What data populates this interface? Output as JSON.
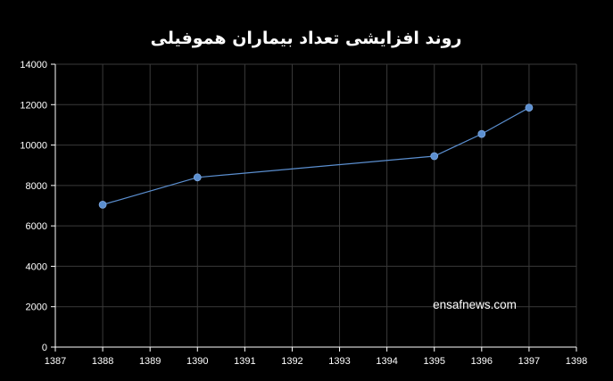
{
  "chart_data": {
    "type": "scatter",
    "title": "روند افزایشی تعداد بیماران هموفیلی",
    "xlabel": "",
    "ylabel": "",
    "xlim": [
      1387,
      1398
    ],
    "ylim": [
      0,
      14000
    ],
    "x_ticks": [
      1387,
      1388,
      1389,
      1390,
      1391,
      1392,
      1393,
      1394,
      1395,
      1396,
      1397,
      1398
    ],
    "y_ticks": [
      0,
      2000,
      4000,
      6000,
      8000,
      10000,
      12000,
      14000
    ],
    "grid": true,
    "legend": "none",
    "series": [
      {
        "x": [
          1388,
          1390,
          1395,
          1396,
          1397
        ],
        "y": [
          7050,
          8400,
          9450,
          10550,
          11850
        ]
      }
    ],
    "annotation": "ensafnews.com",
    "colors": {
      "background": "#000000",
      "line": "#5b8fd0",
      "marker": "#5b8fd0",
      "grid": "#3a3a3a",
      "axis": "#ffffff",
      "text": "#ffffff"
    }
  }
}
